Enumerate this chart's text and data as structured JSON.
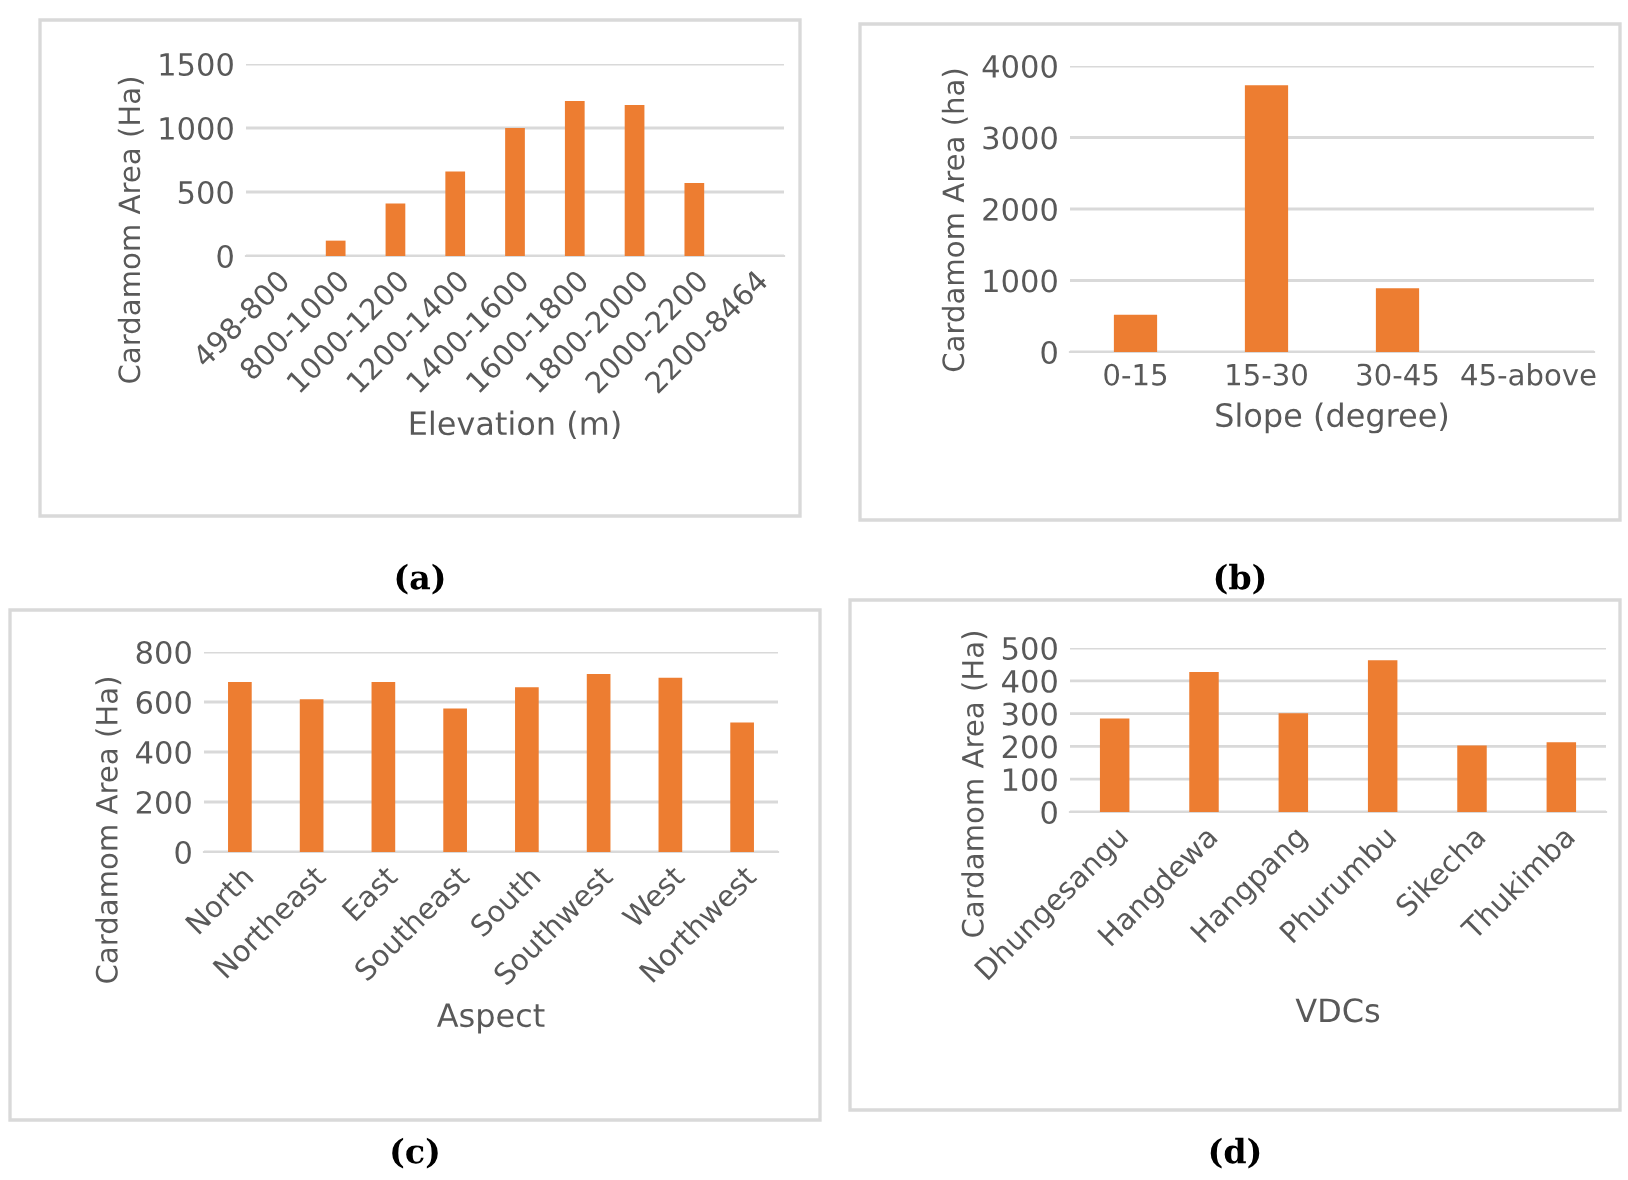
{
  "chart_data": [
    {
      "type": "bar",
      "categories": [
        "498-800",
        "800-1000",
        "1000-1200",
        "1200-1400",
        "1400-1600",
        "1600-1800",
        "1800-2000",
        "2000-2200",
        "2200-8464"
      ],
      "values": [
        0,
        120,
        410,
        660,
        1000,
        1210,
        1180,
        570,
        0
      ],
      "color": "#ed7d31",
      "xlabel": "Elevation (m)",
      "ylabel": "Cardamom Area (Ha)",
      "ylim": [
        0,
        1500
      ],
      "yticks": [
        0,
        500,
        1000,
        1500
      ],
      "grid": "y",
      "annotations": [
        "(a)"
      ]
    },
    {
      "type": "bar",
      "categories": [
        "0-15",
        "15-30",
        "30-45",
        "45-above"
      ],
      "values": [
        520,
        3730,
        890,
        0
      ],
      "color": "#ed7d31",
      "xlabel": "Slope (degree)",
      "ylabel": "Cardamom Area (ha)",
      "ylim": [
        0,
        4000
      ],
      "yticks": [
        0,
        1000,
        2000,
        3000,
        4000
      ],
      "grid": "y",
      "annotations": [
        "(b)"
      ]
    },
    {
      "type": "bar",
      "categories": [
        "North",
        "Northeast",
        "East",
        "Southeast",
        "South",
        "Southwest",
        "West",
        "Northwest"
      ],
      "values": [
        680,
        611,
        680,
        574,
        659,
        712,
        697,
        518
      ],
      "color": "#ed7d31",
      "xlabel": "Aspect",
      "ylabel": "Cardamom Area (Ha)",
      "ylim": [
        0,
        800
      ],
      "yticks": [
        0,
        200,
        400,
        600,
        800
      ],
      "grid": "y",
      "annotations": [
        "(c)"
      ]
    },
    {
      "type": "bar",
      "categories": [
        "Dhungesangu",
        "Hangdewa",
        "Hangpang",
        "Phurumbu",
        "Sikecha",
        "Thukimba"
      ],
      "values": [
        285,
        427,
        301,
        463,
        203,
        213
      ],
      "color": "#ed7d31",
      "xlabel": "VDCs",
      "ylabel": "Cardamom Area (Ha)",
      "ylim": [
        0,
        500
      ],
      "yticks": [
        0,
        100,
        200,
        300,
        400,
        500
      ],
      "grid": "y",
      "annotations": [
        "(d)"
      ]
    }
  ]
}
